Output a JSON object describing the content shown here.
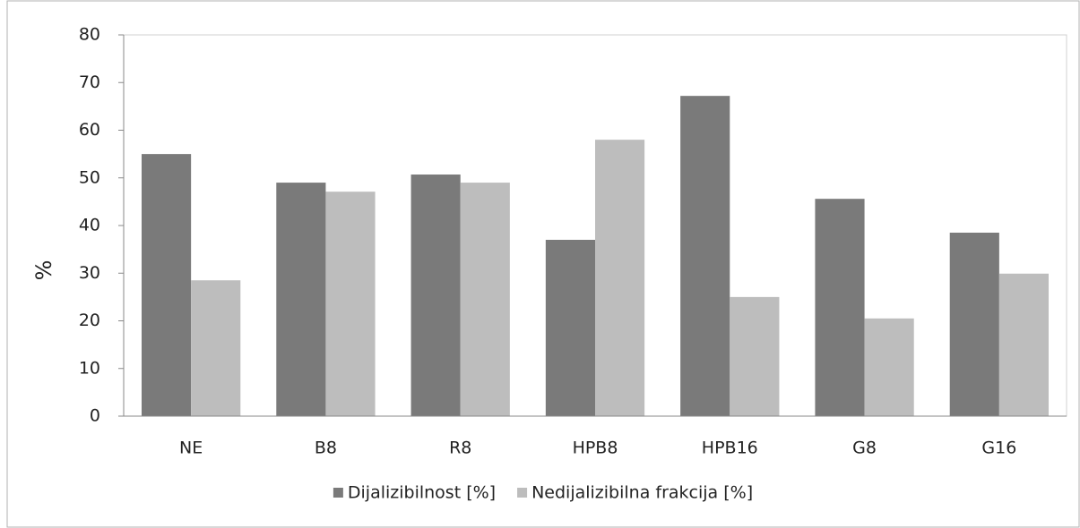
{
  "chart_data": {
    "type": "bar",
    "y_label": "%",
    "categories": [
      "NE",
      "B8",
      "R8",
      "HPB8",
      "HPB16",
      "G8",
      "G16"
    ],
    "series": [
      {
        "name": "Dijalizibilnost [%]",
        "color": "#7a7a7a",
        "values": [
          55.0,
          49.0,
          50.7,
          37.0,
          67.2,
          45.6,
          38.5
        ]
      },
      {
        "name": "Nedijalizibilna frakcija [%]",
        "color": "#bdbdbd",
        "values": [
          28.5,
          47.1,
          49.0,
          58.0,
          25.0,
          20.5,
          29.9
        ]
      }
    ],
    "ylim": [
      0,
      80
    ],
    "yticks": [
      0,
      10,
      20,
      30,
      40,
      50,
      60,
      70,
      80
    ],
    "legend": "bottom"
  }
}
